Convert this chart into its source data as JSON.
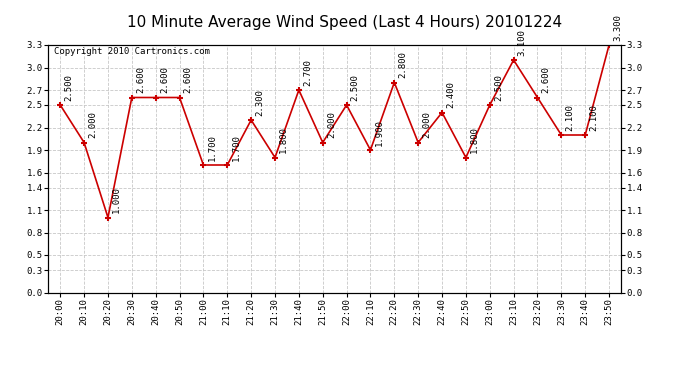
{
  "title": "10 Minute Average Wind Speed (Last 4 Hours) 20101224",
  "copyright": "Copyright 2010 Cartronics.com",
  "x_labels": [
    "20:00",
    "20:10",
    "20:20",
    "20:30",
    "20:40",
    "20:50",
    "21:00",
    "21:10",
    "21:20",
    "21:30",
    "21:40",
    "21:50",
    "22:00",
    "22:10",
    "22:20",
    "22:30",
    "22:40",
    "22:50",
    "23:00",
    "23:10",
    "23:20",
    "23:30",
    "23:40",
    "23:50"
  ],
  "y_values": [
    2.5,
    2.0,
    1.0,
    2.6,
    2.6,
    2.6,
    1.7,
    1.7,
    2.3,
    1.8,
    2.7,
    2.0,
    2.5,
    1.9,
    2.8,
    2.0,
    2.4,
    1.8,
    2.5,
    3.1,
    2.6,
    2.1,
    2.1,
    3.3
  ],
  "point_labels": [
    "2.500",
    "2.000",
    "1.000",
    "2.600",
    "2.600",
    "2.600",
    "1.700",
    "1.700",
    "2.300",
    "1.800",
    "2.700",
    "2.000",
    "2.500",
    "1.900",
    "2.800",
    "2.000",
    "2.400",
    "1.800",
    "2.500",
    "3.100",
    "2.600",
    "2.100",
    "2.100",
    "3.300"
  ],
  "line_color": "#cc0000",
  "marker_color": "#cc0000",
  "bg_color": "#ffffff",
  "plot_bg_color": "#ffffff",
  "grid_color": "#c8c8c8",
  "ylim": [
    0.0,
    3.3
  ],
  "yticks": [
    0.0,
    0.3,
    0.5,
    0.8,
    1.1,
    1.4,
    1.6,
    1.9,
    2.2,
    2.5,
    2.7,
    3.0,
    3.3
  ],
  "title_fontsize": 11,
  "label_fontsize": 6.5,
  "annotation_fontsize": 6.5,
  "copyright_fontsize": 6.5,
  "figsize": [
    6.9,
    3.75
  ],
  "dpi": 100
}
